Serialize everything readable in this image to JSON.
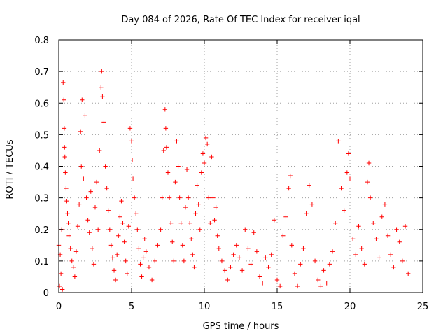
{
  "chart_data": {
    "type": "scatter",
    "title": "Day 084 of 2026, Rate Of TEC Index for receiver iqal",
    "xlabel": "GPS time / hours",
    "ylabel": "ROTI / TECUs",
    "xlim": [
      0,
      25
    ],
    "ylim": [
      0,
      0.8
    ],
    "x_ticks": [
      0,
      5,
      10,
      15,
      20,
      25
    ],
    "y_ticks": [
      0,
      0.1,
      0.2,
      0.3,
      0.4,
      0.5,
      0.6,
      0.7,
      0.8
    ],
    "x_tick_labels": [
      "0",
      "5",
      "10",
      "15",
      "20",
      "25"
    ],
    "y_tick_labels": [
      "0",
      "0.1",
      "0.2",
      "0.3",
      "0.4",
      "0.5",
      "0.6",
      "0.7",
      "0.8"
    ],
    "grid": true,
    "marker": "+",
    "series_color": "#ff0000",
    "series": [
      {
        "name": "ROTI",
        "points": [
          [
            0.0,
            0.15
          ],
          [
            0.05,
            0.02
          ],
          [
            0.1,
            0.12
          ],
          [
            0.15,
            0.06
          ],
          [
            0.2,
            0.2
          ],
          [
            0.25,
            0.01
          ],
          [
            0.3,
            0.665
          ],
          [
            0.35,
            0.61
          ],
          [
            0.38,
            0.52
          ],
          [
            0.4,
            0.46
          ],
          [
            0.42,
            0.43
          ],
          [
            0.45,
            0.38
          ],
          [
            0.5,
            0.33
          ],
          [
            0.55,
            0.29
          ],
          [
            0.6,
            0.25
          ],
          [
            0.65,
            0.22
          ],
          [
            0.7,
            0.18
          ],
          [
            0.8,
            0.14
          ],
          [
            0.9,
            0.1
          ],
          [
            1.0,
            0.08
          ],
          [
            1.1,
            0.05
          ],
          [
            1.2,
            0.13
          ],
          [
            1.3,
            0.21
          ],
          [
            1.4,
            0.28
          ],
          [
            1.5,
            0.51
          ],
          [
            1.55,
            0.4
          ],
          [
            1.6,
            0.61
          ],
          [
            1.7,
            0.36
          ],
          [
            1.8,
            0.56
          ],
          [
            1.9,
            0.3
          ],
          [
            2.0,
            0.23
          ],
          [
            2.1,
            0.19
          ],
          [
            2.2,
            0.32
          ],
          [
            2.3,
            0.14
          ],
          [
            2.4,
            0.09
          ],
          [
            2.5,
            0.27
          ],
          [
            2.6,
            0.35
          ],
          [
            2.7,
            0.2
          ],
          [
            2.8,
            0.45
          ],
          [
            2.9,
            0.65
          ],
          [
            2.95,
            0.7
          ],
          [
            3.0,
            0.62
          ],
          [
            3.1,
            0.54
          ],
          [
            3.2,
            0.4
          ],
          [
            3.3,
            0.33
          ],
          [
            3.4,
            0.26
          ],
          [
            3.5,
            0.2
          ],
          [
            3.6,
            0.15
          ],
          [
            3.7,
            0.11
          ],
          [
            3.8,
            0.07
          ],
          [
            3.9,
            0.04
          ],
          [
            4.0,
            0.12
          ],
          [
            4.1,
            0.18
          ],
          [
            4.2,
            0.24
          ],
          [
            4.3,
            0.29
          ],
          [
            4.4,
            0.22
          ],
          [
            4.5,
            0.16
          ],
          [
            4.6,
            0.1
          ],
          [
            4.7,
            0.06
          ],
          [
            4.8,
            0.21
          ],
          [
            4.9,
            0.52
          ],
          [
            5.0,
            0.48
          ],
          [
            5.05,
            0.42
          ],
          [
            5.1,
            0.36
          ],
          [
            5.2,
            0.3
          ],
          [
            5.3,
            0.25
          ],
          [
            5.4,
            0.2
          ],
          [
            5.5,
            0.14
          ],
          [
            5.6,
            0.09
          ],
          [
            5.7,
            0.05
          ],
          [
            5.8,
            0.11
          ],
          [
            5.9,
            0.17
          ],
          [
            6.0,
            0.13
          ],
          [
            6.2,
            0.08
          ],
          [
            6.4,
            0.04
          ],
          [
            6.6,
            0.1
          ],
          [
            6.8,
            0.15
          ],
          [
            7.0,
            0.2
          ],
          [
            7.1,
            0.3
          ],
          [
            7.2,
            0.45
          ],
          [
            7.3,
            0.58
          ],
          [
            7.35,
            0.52
          ],
          [
            7.4,
            0.46
          ],
          [
            7.5,
            0.38
          ],
          [
            7.6,
            0.3
          ],
          [
            7.7,
            0.22
          ],
          [
            7.8,
            0.16
          ],
          [
            7.9,
            0.1
          ],
          [
            8.0,
            0.35
          ],
          [
            8.1,
            0.48
          ],
          [
            8.2,
            0.4
          ],
          [
            8.3,
            0.3
          ],
          [
            8.4,
            0.22
          ],
          [
            8.5,
            0.15
          ],
          [
            8.6,
            0.1
          ],
          [
            8.7,
            0.27
          ],
          [
            8.8,
            0.39
          ],
          [
            8.9,
            0.3
          ],
          [
            9.0,
            0.22
          ],
          [
            9.1,
            0.17
          ],
          [
            9.2,
            0.12
          ],
          [
            9.3,
            0.08
          ],
          [
            9.4,
            0.25
          ],
          [
            9.5,
            0.34
          ],
          [
            9.6,
            0.28
          ],
          [
            9.7,
            0.2
          ],
          [
            9.8,
            0.38
          ],
          [
            9.9,
            0.44
          ],
          [
            10.0,
            0.41
          ],
          [
            10.1,
            0.49
          ],
          [
            10.2,
            0.47
          ],
          [
            10.3,
            0.3
          ],
          [
            10.4,
            0.22
          ],
          [
            10.5,
            0.43
          ],
          [
            10.6,
            0.3
          ],
          [
            10.7,
            0.23
          ],
          [
            10.8,
            0.27
          ],
          [
            10.9,
            0.18
          ],
          [
            11.0,
            0.14
          ],
          [
            11.2,
            0.1
          ],
          [
            11.4,
            0.07
          ],
          [
            11.6,
            0.04
          ],
          [
            11.8,
            0.08
          ],
          [
            12.0,
            0.12
          ],
          [
            12.2,
            0.15
          ],
          [
            12.4,
            0.11
          ],
          [
            12.6,
            0.07
          ],
          [
            12.8,
            0.2
          ],
          [
            13.0,
            0.14
          ],
          [
            13.2,
            0.09
          ],
          [
            13.4,
            0.19
          ],
          [
            13.6,
            0.13
          ],
          [
            13.8,
            0.05
          ],
          [
            14.0,
            0.03
          ],
          [
            14.2,
            0.11
          ],
          [
            14.4,
            0.08
          ],
          [
            14.6,
            0.12
          ],
          [
            14.8,
            0.23
          ],
          [
            15.0,
            0.04
          ],
          [
            15.2,
            0.02
          ],
          [
            15.4,
            0.18
          ],
          [
            15.6,
            0.24
          ],
          [
            15.8,
            0.33
          ],
          [
            15.9,
            0.37
          ],
          [
            16.0,
            0.15
          ],
          [
            16.2,
            0.06
          ],
          [
            16.4,
            0.02
          ],
          [
            16.6,
            0.09
          ],
          [
            16.8,
            0.14
          ],
          [
            17.0,
            0.25
          ],
          [
            17.2,
            0.34
          ],
          [
            17.4,
            0.28
          ],
          [
            17.6,
            0.1
          ],
          [
            17.8,
            0.04
          ],
          [
            18.0,
            0.02
          ],
          [
            18.2,
            0.07
          ],
          [
            18.4,
            0.03
          ],
          [
            18.6,
            0.09
          ],
          [
            18.8,
            0.13
          ],
          [
            19.0,
            0.22
          ],
          [
            19.2,
            0.48
          ],
          [
            19.4,
            0.33
          ],
          [
            19.6,
            0.26
          ],
          [
            19.8,
            0.38
          ],
          [
            19.9,
            0.44
          ],
          [
            20.0,
            0.36
          ],
          [
            20.2,
            0.17
          ],
          [
            20.4,
            0.12
          ],
          [
            20.6,
            0.21
          ],
          [
            20.8,
            0.14
          ],
          [
            21.0,
            0.09
          ],
          [
            21.2,
            0.35
          ],
          [
            21.3,
            0.41
          ],
          [
            21.4,
            0.3
          ],
          [
            21.6,
            0.22
          ],
          [
            21.8,
            0.17
          ],
          [
            22.0,
            0.11
          ],
          [
            22.2,
            0.24
          ],
          [
            22.4,
            0.28
          ],
          [
            22.6,
            0.18
          ],
          [
            22.8,
            0.12
          ],
          [
            23.0,
            0.08
          ],
          [
            23.2,
            0.2
          ],
          [
            23.4,
            0.16
          ],
          [
            23.6,
            0.1
          ],
          [
            23.8,
            0.21
          ],
          [
            24.0,
            0.06
          ]
        ]
      }
    ]
  }
}
